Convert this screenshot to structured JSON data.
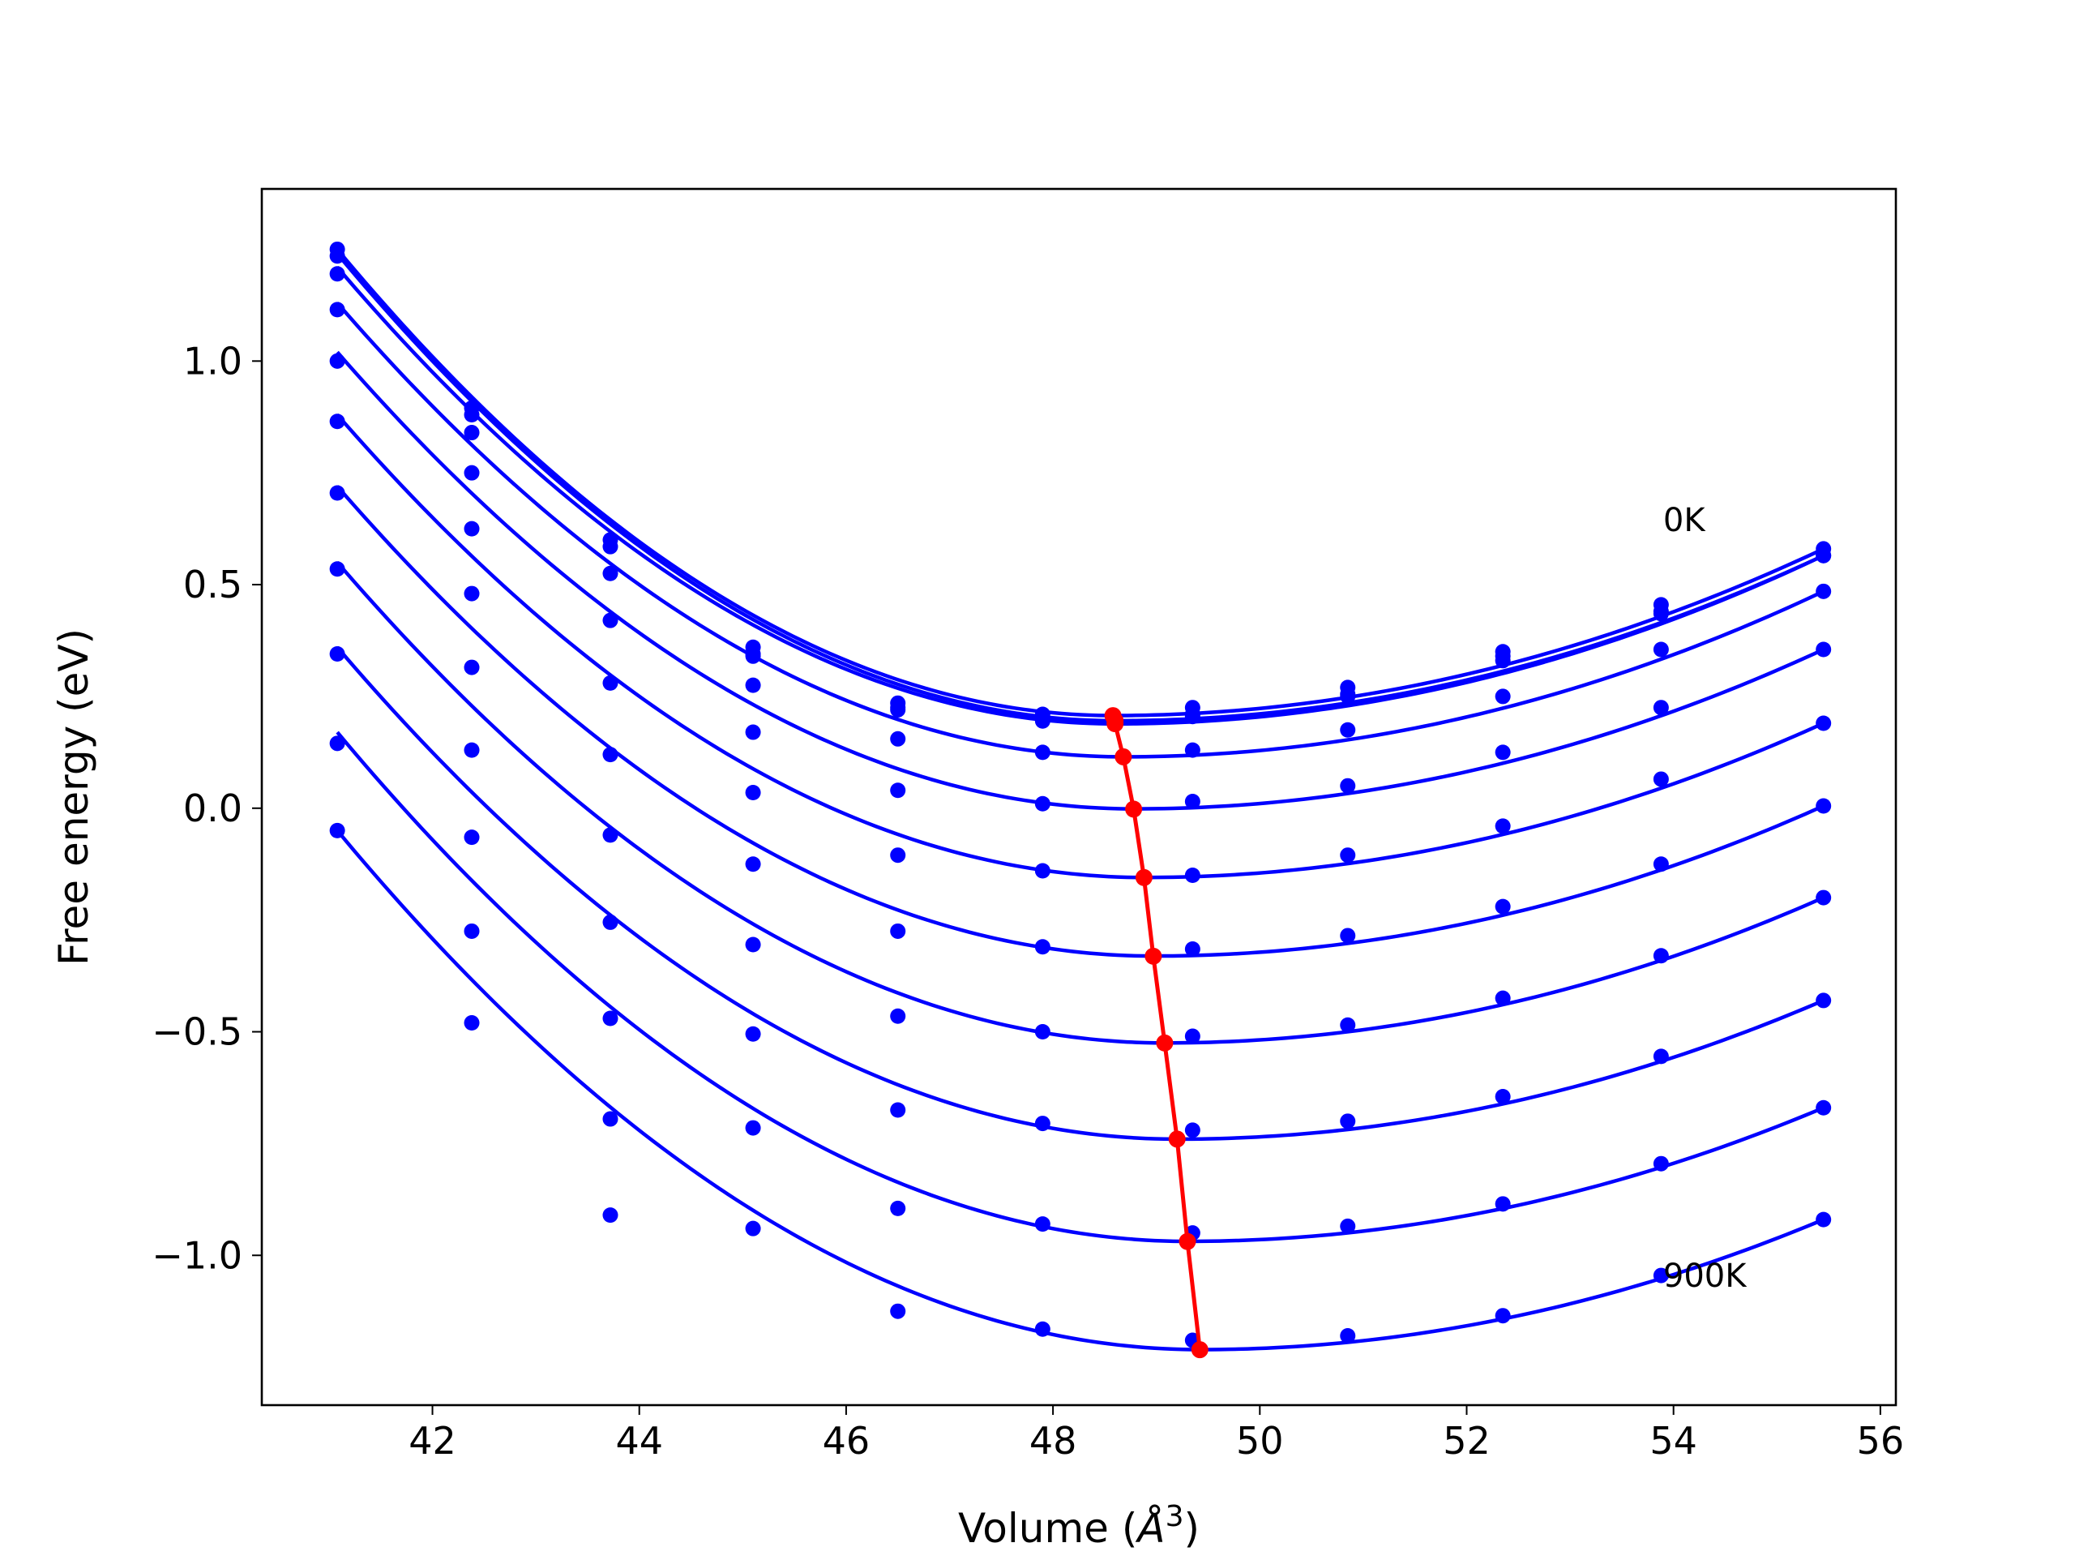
{
  "chart_data": {
    "type": "line",
    "xlabel": "Volume (",
    "xlabel_unit": "Å",
    "xlabel_exp": "3",
    "xlabel_close": ")",
    "ylabel": "Free energy (eV)",
    "xlim": [
      40.35,
      56.15
    ],
    "ylim": [
      -1.335,
      1.385
    ],
    "xticks": [
      42,
      44,
      46,
      48,
      50,
      52,
      54,
      56
    ],
    "xtick_labels": [
      "42",
      "44",
      "46",
      "48",
      "50",
      "52",
      "54",
      "56"
    ],
    "yticks": [
      -1.0,
      -0.5,
      0.0,
      0.5,
      1.0
    ],
    "ytick_labels": [
      "−1.0",
      "−0.5",
      "0.0",
      "0.5",
      "1.0"
    ],
    "grid": false,
    "annotations": [
      {
        "text": "0K",
        "x": 53.9,
        "y": 0.62
      },
      {
        "text": "900K",
        "x": 53.9,
        "y": -1.07
      }
    ],
    "volumes": [
      41.08,
      42.38,
      43.72,
      45.1,
      46.5,
      47.9,
      49.35,
      50.85,
      52.35,
      53.88,
      55.45
    ],
    "colors": {
      "fit": "#0000ff",
      "points": "#0000ff",
      "minima": "#ff0000"
    },
    "series": [
      {
        "min_v": 48.58,
        "min_e": 0.2072,
        "e_start": 1.25,
        "e_end": 0.58,
        "points": [
          1.25,
          0.895,
          0.6,
          0.36,
          0.235,
          0.21,
          0.225,
          0.27,
          0.35,
          0.455,
          0.58
        ]
      },
      {
        "min_v": 48.6,
        "min_e": 0.1956,
        "e_start": 1.24,
        "e_end": 0.565,
        "points": [
          1.235,
          0.88,
          0.585,
          0.345,
          0.225,
          0.2,
          0.21,
          0.255,
          0.34,
          0.435,
          0.565
        ]
      },
      {
        "min_v": 48.6,
        "min_e": 0.1886,
        "e_start": 1.21,
        "e_end": 0.565,
        "points": [
          1.195,
          0.84,
          0.525,
          0.34,
          0.22,
          0.195,
          0.205,
          0.25,
          0.33,
          0.44,
          0.565
        ]
      },
      {
        "min_v": 48.68,
        "min_e": 0.1149,
        "e_start": 1.13,
        "e_end": 0.485,
        "points": [
          1.115,
          0.75,
          0.42,
          0.275,
          0.155,
          0.125,
          0.13,
          0.175,
          0.25,
          0.355,
          0.485
        ]
      },
      {
        "min_v": 48.78,
        "min_e": -0.0015,
        "e_start": 1.02,
        "e_end": 0.355,
        "points": [
          1.0,
          0.625,
          0.28,
          0.17,
          0.04,
          0.01,
          0.015,
          0.05,
          0.125,
          0.225,
          0.355
        ]
      },
      {
        "min_v": 48.88,
        "min_e": -0.1549,
        "e_start": 0.88,
        "e_end": 0.19,
        "points": [
          0.865,
          0.48,
          0.12,
          0.035,
          -0.105,
          -0.14,
          -0.15,
          -0.105,
          -0.04,
          0.065,
          0.19
        ]
      },
      {
        "min_v": 48.97,
        "min_e": -0.3306,
        "e_start": 0.72,
        "e_end": 0.005,
        "points": [
          0.705,
          0.315,
          -0.06,
          -0.125,
          -0.275,
          -0.31,
          -0.315,
          -0.285,
          -0.22,
          -0.125,
          0.005
        ]
      },
      {
        "min_v": 49.08,
        "min_e": -0.525,
        "e_start": 0.55,
        "e_end": -0.2,
        "points": [
          0.535,
          0.13,
          -0.255,
          -0.305,
          -0.465,
          -0.5,
          -0.51,
          -0.485,
          -0.425,
          -0.33,
          -0.2
        ]
      },
      {
        "min_v": 49.2,
        "min_e": -0.7401,
        "e_start": 0.36,
        "e_end": -0.43,
        "points": [
          0.345,
          -0.065,
          -0.47,
          -0.505,
          -0.675,
          -0.705,
          -0.72,
          -0.7,
          -0.645,
          -0.555,
          -0.43
        ]
      },
      {
        "min_v": 49.3,
        "min_e": -0.9687,
        "e_start": 0.17,
        "e_end": -0.67,
        "points": [
          0.145,
          -0.275,
          -0.695,
          -0.715,
          -0.895,
          -0.93,
          -0.95,
          -0.935,
          -0.885,
          -0.795,
          -0.67
        ]
      },
      {
        "min_v": 49.42,
        "min_e": -1.2108,
        "e_start": -0.05,
        "e_end": -0.92,
        "points": [
          -0.05,
          -0.48,
          -0.91,
          -0.94,
          -1.125,
          -1.165,
          -1.19,
          -1.18,
          -1.135,
          -1.045,
          -0.92
        ]
      }
    ],
    "minima_line": {
      "x": [
        48.58,
        48.6,
        48.6,
        48.68,
        48.78,
        48.88,
        48.97,
        49.08,
        49.2,
        49.3,
        49.42
      ],
      "y": [
        0.207,
        0.196,
        0.189,
        0.115,
        -0.002,
        -0.155,
        -0.331,
        -0.525,
        -0.74,
        -0.969,
        -1.211
      ]
    }
  }
}
